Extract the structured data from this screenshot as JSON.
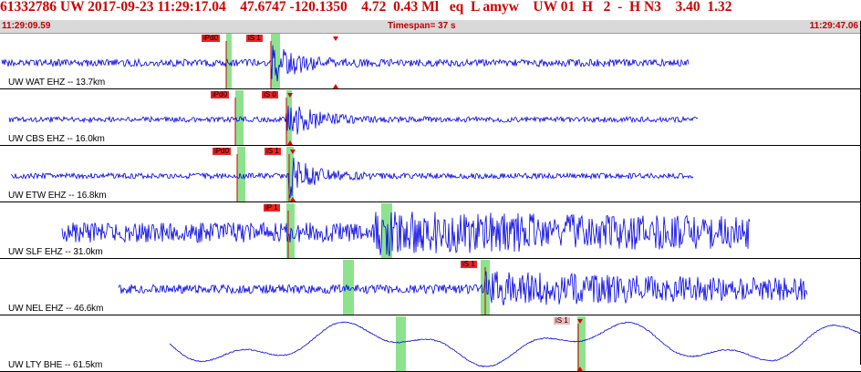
{
  "header": {
    "event_id": "61332786",
    "network": "UW",
    "date": "2017-09-23",
    "time": "11:29:17.04",
    "latitude": "47.6747",
    "longitude": "-120.1350",
    "depth": "4.72",
    "magnitude": "0.43",
    "mag_type": "Ml",
    "event_type": "eq",
    "flag": "L",
    "analyst": "amyw",
    "summary": "UW 01  H   2  -  H N3",
    "value_1": "3.40",
    "value_2": "1.32"
  },
  "time_axis": {
    "start": "11:29:09.59",
    "timespan_label": "Timespan=  37 s",
    "end": "11:29:47.06"
  },
  "colors": {
    "waveform": "#0000e6",
    "pick": "#ee2222",
    "pick_pale": "#f3b6b6",
    "window": "#8de38d",
    "header_text": "#d00000"
  },
  "traces": [
    {
      "label": "UW WAT EHZ -- 13.7km",
      "picks": [
        {
          "label": "iPd0"
        },
        {
          "label": "iS 1"
        }
      ]
    },
    {
      "label": "UW CBS EHZ -- 16.0km",
      "picks": [
        {
          "label": "iPd0"
        },
        {
          "label": "iS 0"
        }
      ]
    },
    {
      "label": "UW ETW EHZ -- 16.8km",
      "picks": [
        {
          "label": "iPd0"
        },
        {
          "label": "iS 1"
        }
      ]
    },
    {
      "label": "UW SLF EHZ -- 31.0km",
      "picks": [
        {
          "label": "iP 1"
        }
      ]
    },
    {
      "label": "UW NEL EHZ -- 46.6km",
      "picks": [
        {
          "label": "iS 1"
        }
      ]
    },
    {
      "label": "UW LTY BHE -- 61.5km",
      "picks": [
        {
          "label": "iS 1"
        }
      ]
    }
  ]
}
